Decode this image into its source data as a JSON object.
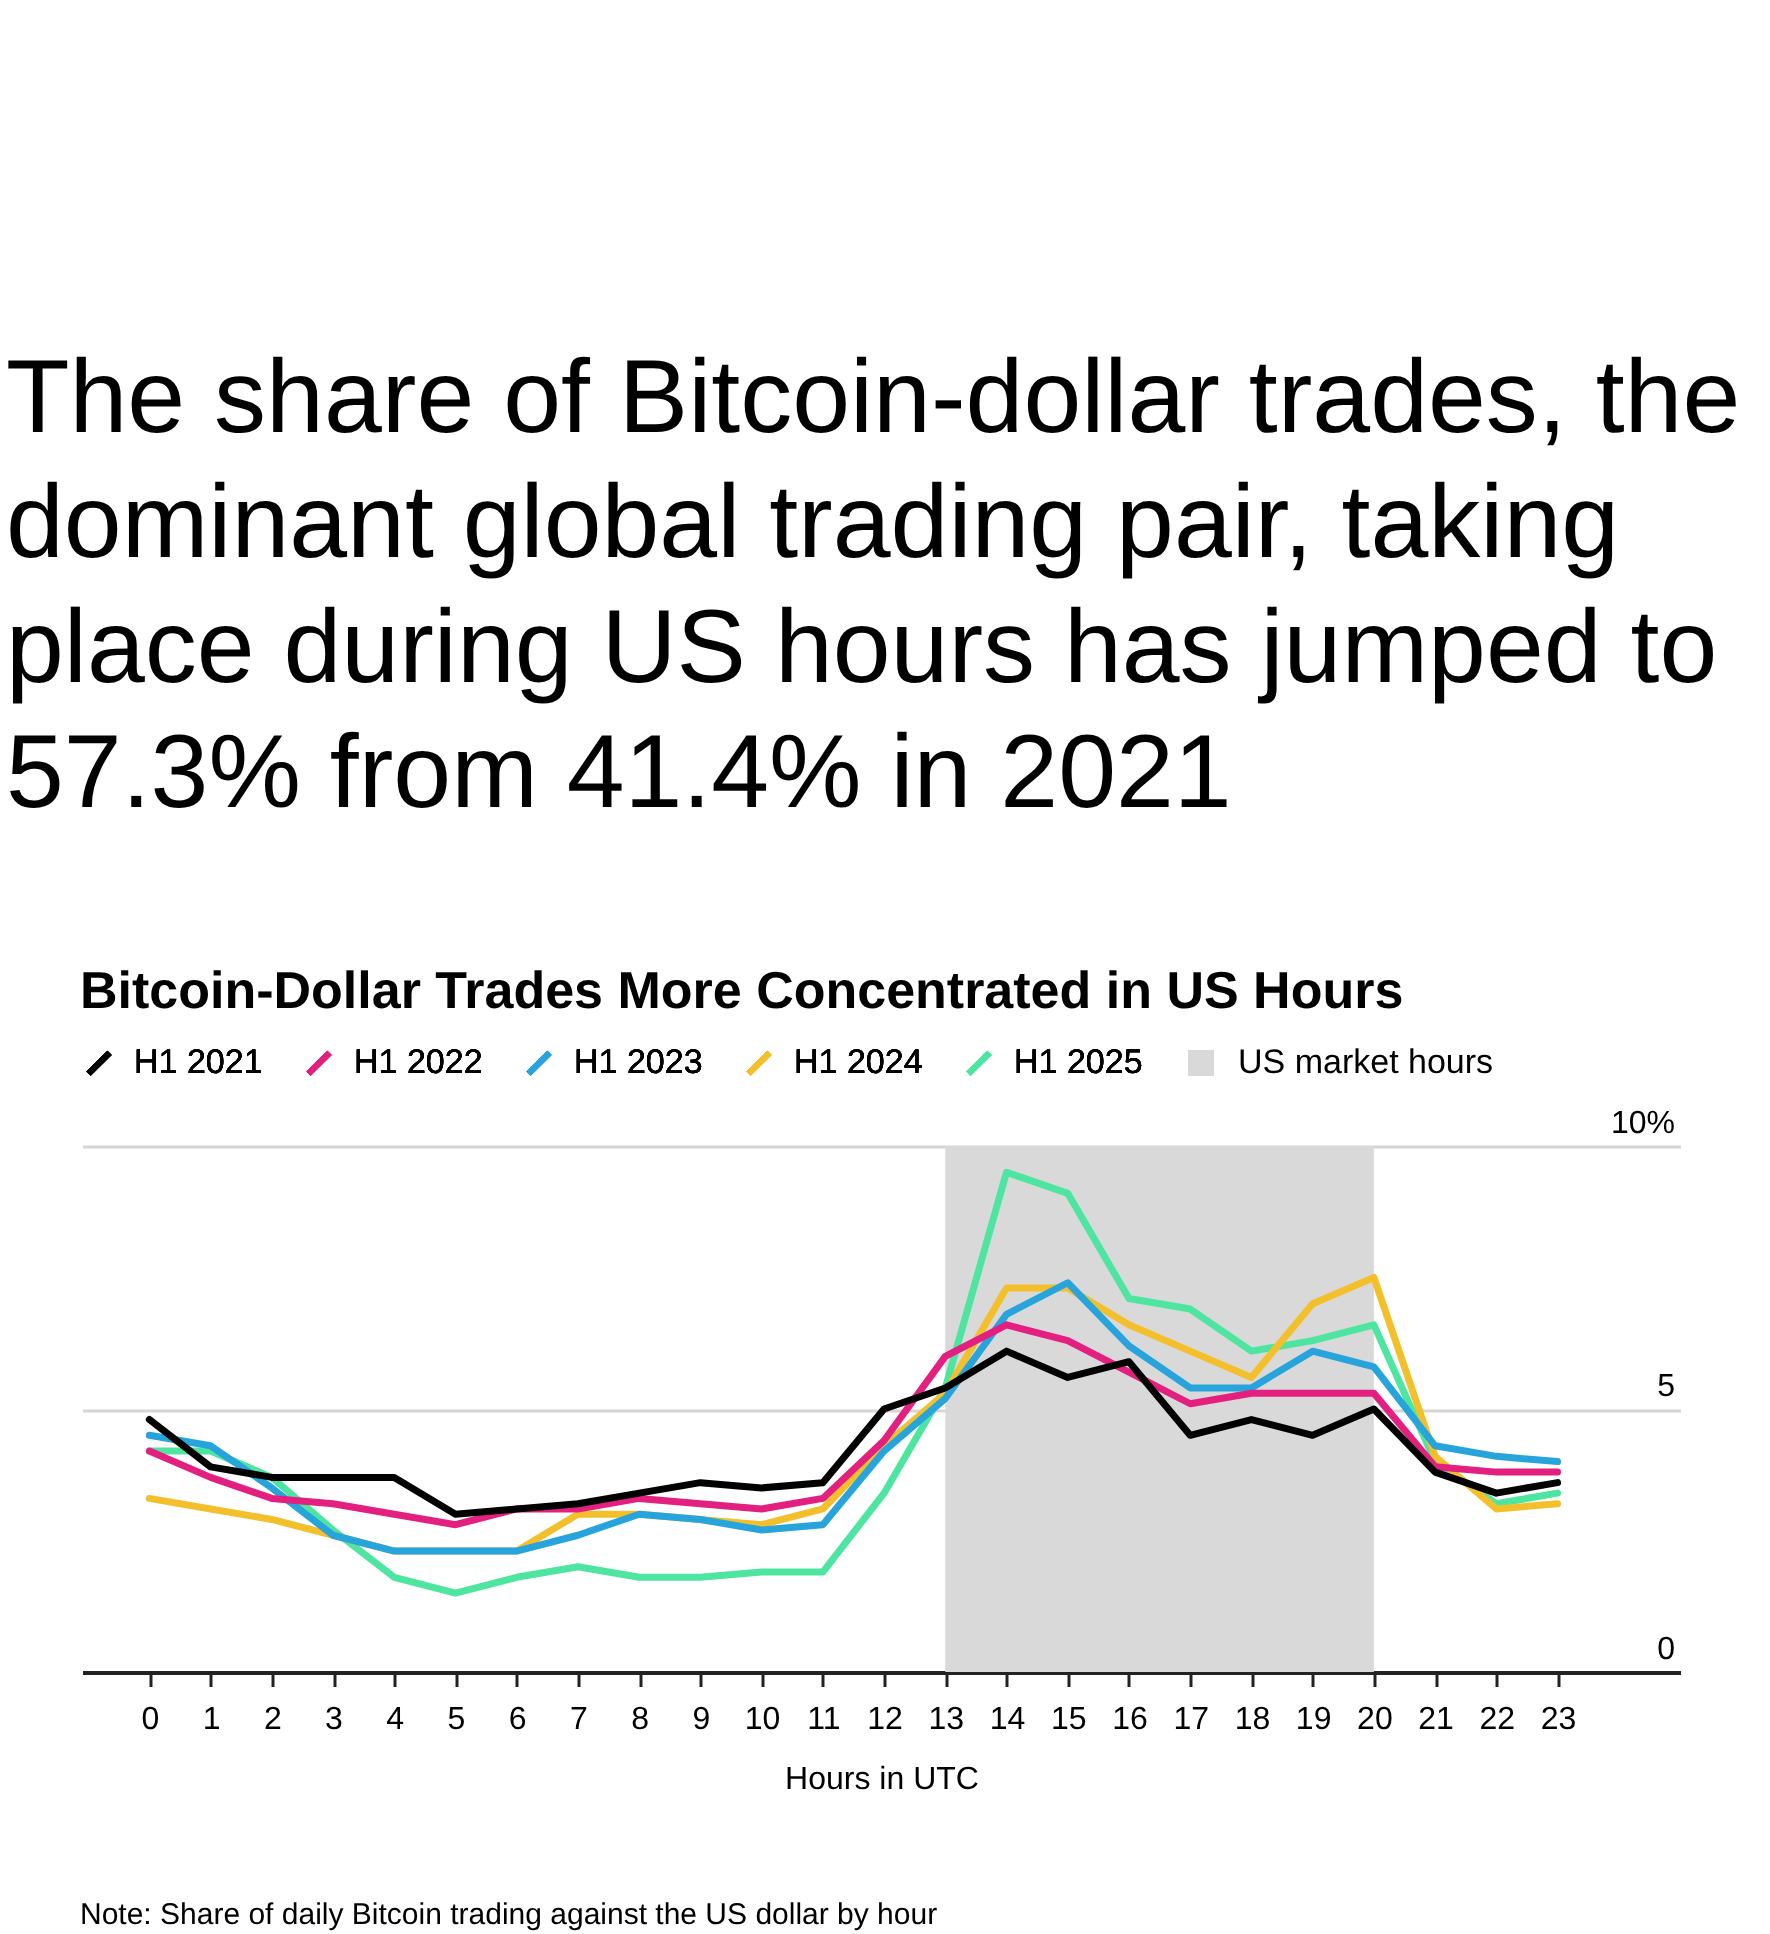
{
  "chart_data": {
    "type": "line",
    "title": "The share of Bitcoin-dollar trades, the dominant global trading pair, taking place during US hours has jumped to 57.3% from 41.4% in 2021",
    "subtitle": "Bitcoin-Dollar Trades More Concentrated in US Hours",
    "xlabel": "Hours in UTC",
    "annotations": [
      "Note: Share of daily Bitcoin trading against the US dollar by hour"
    ],
    "x": [
      0,
      1,
      2,
      3,
      4,
      5,
      6,
      7,
      8,
      9,
      10,
      11,
      12,
      13,
      14,
      15,
      16,
      17,
      18,
      19,
      20,
      21,
      22,
      23
    ],
    "xlim": [
      -1.1,
      25
    ],
    "xticks": [
      0,
      1,
      2,
      3,
      4,
      5,
      6,
      7,
      8,
      9,
      10,
      11,
      12,
      13,
      14,
      15,
      16,
      17,
      18,
      19,
      20,
      21,
      22,
      23
    ],
    "ylim": [
      0,
      10
    ],
    "yticks": [
      0,
      5,
      {
        "value": 10,
        "label": "10%"
      }
    ],
    "grid": "y",
    "legend": "top left",
    "line_style": "solid",
    "bands": [
      {
        "axis": "x",
        "from": 13,
        "to": 20,
        "label": "US market hours",
        "color": "#d9d9d9"
      }
    ],
    "series": [
      {
        "name": "H1 2021",
        "color": "#000000",
        "values": [
          4.8,
          3.9,
          3.7,
          3.7,
          3.7,
          3.0,
          3.1,
          3.2,
          3.4,
          3.6,
          3.5,
          3.6,
          5.0,
          5.4,
          6.1,
          5.6,
          5.9,
          4.5,
          4.8,
          4.5,
          5.0,
          3.8,
          3.4,
          3.6
        ]
      },
      {
        "name": "H1 2022",
        "color": "#e3207f",
        "values": [
          4.2,
          3.7,
          3.3,
          3.2,
          3.0,
          2.8,
          3.1,
          3.1,
          3.3,
          3.2,
          3.1,
          3.3,
          4.4,
          6.0,
          6.6,
          6.3,
          5.7,
          5.1,
          5.3,
          5.3,
          5.3,
          3.9,
          3.8,
          3.8
        ]
      },
      {
        "name": "H1 2023",
        "color": "#28a4dc",
        "values": [
          4.5,
          4.3,
          3.5,
          2.6,
          2.3,
          2.3,
          2.3,
          2.6,
          3.0,
          2.9,
          2.7,
          2.8,
          4.2,
          5.2,
          6.8,
          7.4,
          6.2,
          5.4,
          5.4,
          6.1,
          5.8,
          4.3,
          4.1,
          4.0
        ]
      },
      {
        "name": "H1 2024",
        "color": "#f3c02c",
        "values": [
          3.3,
          3.1,
          2.9,
          2.6,
          2.3,
          2.3,
          2.3,
          3.0,
          3.0,
          2.9,
          2.8,
          3.1,
          4.3,
          5.3,
          7.3,
          7.3,
          6.6,
          6.1,
          5.6,
          7.0,
          7.5,
          4.1,
          3.1,
          3.2
        ]
      },
      {
        "name": "H1 2025",
        "color": "#4de5a0",
        "values": [
          4.2,
          4.2,
          3.7,
          2.7,
          1.8,
          1.5,
          1.8,
          2.0,
          1.8,
          1.8,
          1.9,
          1.9,
          3.4,
          5.4,
          9.5,
          9.1,
          7.1,
          6.9,
          6.1,
          6.3,
          6.6,
          4.0,
          3.2,
          3.4
        ]
      }
    ]
  }
}
